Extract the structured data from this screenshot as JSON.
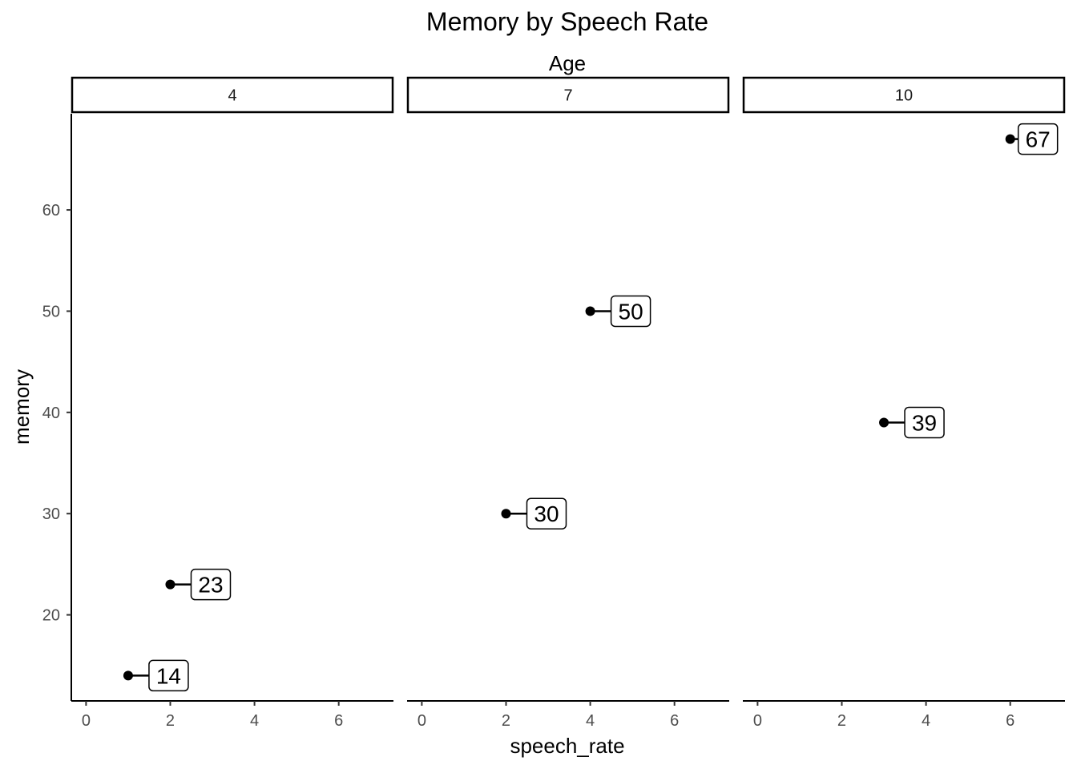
{
  "chart_data": {
    "type": "scatter",
    "title": "Memory by Speech Rate",
    "facet_title": "Age",
    "xlabel": "speech_rate",
    "ylabel": "memory",
    "xlim": [
      -0.35,
      7.3
    ],
    "ylim": [
      11.5,
      69.5
    ],
    "xticks": [
      0,
      2,
      4,
      6
    ],
    "yticks": [
      20,
      30,
      40,
      50,
      60
    ],
    "grid": false,
    "facets": [
      {
        "label": "4",
        "points": [
          {
            "x": 1,
            "y": 14,
            "label": "14"
          },
          {
            "x": 2,
            "y": 23,
            "label": "23"
          }
        ]
      },
      {
        "label": "7",
        "points": [
          {
            "x": 2,
            "y": 30,
            "label": "30"
          },
          {
            "x": 4,
            "y": 50,
            "label": "50"
          }
        ]
      },
      {
        "label": "10",
        "points": [
          {
            "x": 3,
            "y": 39,
            "label": "39"
          },
          {
            "x": 6,
            "y": 67,
            "label": "67"
          }
        ]
      }
    ]
  }
}
